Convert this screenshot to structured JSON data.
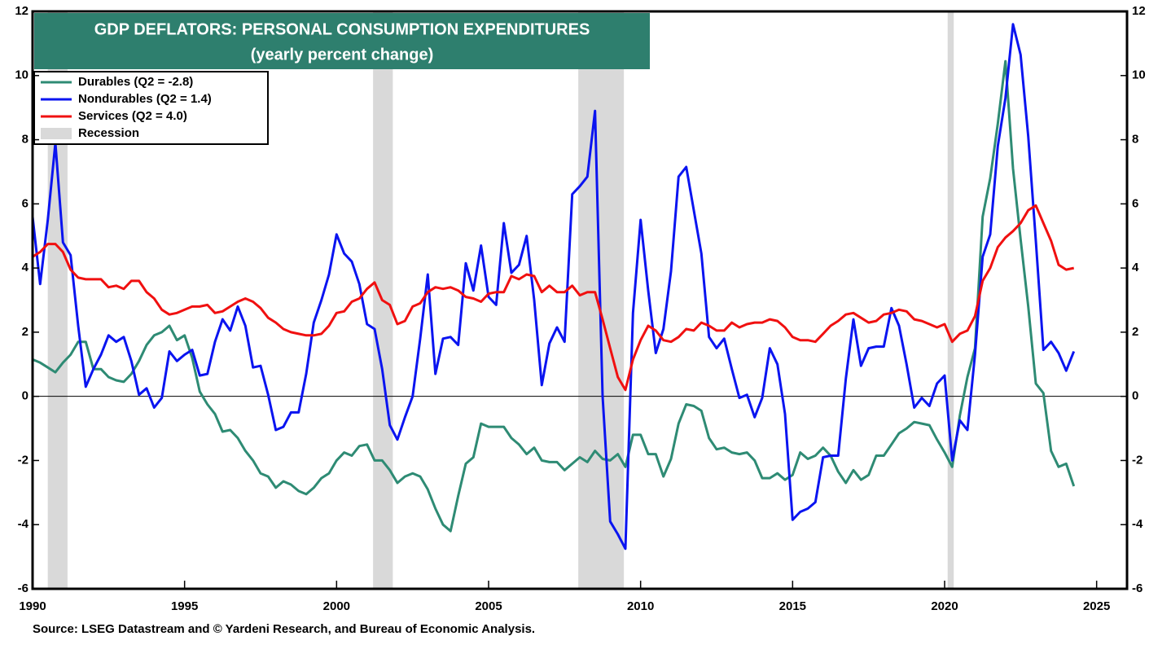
{
  "chart_data": {
    "type": "line",
    "title": "GDP DEFLATORS: PERSONAL CONSUMPTION EXPENDITURES",
    "subtitle": "(yearly percent change)",
    "source": "Source: LSEG Datastream and © Yardeni Research, and Bureau of Economic Analysis.",
    "x": [
      1990,
      1990.25,
      1990.5,
      1990.75,
      1991,
      1991.25,
      1991.5,
      1991.75,
      1992,
      1992.25,
      1992.5,
      1992.75,
      1993,
      1993.25,
      1993.5,
      1993.75,
      1994,
      1994.25,
      1994.5,
      1994.75,
      1995,
      1995.25,
      1995.5,
      1995.75,
      1996,
      1996.25,
      1996.5,
      1996.75,
      1997,
      1997.25,
      1997.5,
      1997.75,
      1998,
      1998.25,
      1998.5,
      1998.75,
      1999,
      1999.25,
      1999.5,
      1999.75,
      2000,
      2000.25,
      2000.5,
      2000.75,
      2001,
      2001.25,
      2001.5,
      2001.75,
      2002,
      2002.25,
      2002.5,
      2002.75,
      2003,
      2003.25,
      2003.5,
      2003.75,
      2004,
      2004.25,
      2004.5,
      2004.75,
      2005,
      2005.25,
      2005.5,
      2005.75,
      2006,
      2006.25,
      2006.5,
      2006.75,
      2007,
      2007.25,
      2007.5,
      2007.75,
      2008,
      2008.25,
      2008.5,
      2008.75,
      2009,
      2009.25,
      2009.5,
      2009.75,
      2010,
      2010.25,
      2010.5,
      2010.75,
      2011,
      2011.25,
      2011.5,
      2011.75,
      2012,
      2012.25,
      2012.5,
      2012.75,
      2013,
      2013.25,
      2013.5,
      2013.75,
      2014,
      2014.25,
      2014.5,
      2014.75,
      2015,
      2015.25,
      2015.5,
      2015.75,
      2016,
      2016.25,
      2016.5,
      2016.75,
      2017,
      2017.25,
      2017.5,
      2017.75,
      2018,
      2018.25,
      2018.5,
      2018.75,
      2019,
      2019.25,
      2019.5,
      2019.75,
      2020,
      2020.25,
      2020.5,
      2020.75,
      2021,
      2021.25,
      2021.5,
      2021.75,
      2022,
      2022.25,
      2022.5,
      2022.75,
      2023,
      2023.25,
      2023.5,
      2023.75,
      2024,
      2024.25
    ],
    "series": [
      {
        "name": "Durables  (Q2 = -2.8)",
        "color": "#2e8b74",
        "values": [
          1.15,
          1.05,
          0.9,
          0.75,
          1.05,
          1.3,
          1.7,
          1.7,
          0.85,
          0.85,
          0.6,
          0.5,
          0.45,
          0.7,
          1.1,
          1.6,
          1.9,
          2.0,
          2.2,
          1.75,
          1.9,
          1.2,
          0.15,
          -0.25,
          -0.55,
          -1.1,
          -1.05,
          -1.3,
          -1.7,
          -2.0,
          -2.4,
          -2.5,
          -2.85,
          -2.65,
          -2.75,
          -2.95,
          -3.05,
          -2.85,
          -2.55,
          -2.4,
          -2.0,
          -1.75,
          -1.85,
          -1.55,
          -1.5,
          -2.0,
          -2.0,
          -2.3,
          -2.7,
          -2.5,
          -2.4,
          -2.5,
          -2.9,
          -3.5,
          -4.0,
          -4.2,
          -3.1,
          -2.1,
          -1.9,
          -0.85,
          -0.95,
          -0.95,
          -0.95,
          -1.3,
          -1.5,
          -1.8,
          -1.6,
          -2.0,
          -2.05,
          -2.05,
          -2.3,
          -2.1,
          -1.9,
          -2.05,
          -1.7,
          -1.95,
          -2.0,
          -1.8,
          -2.2,
          -1.2,
          -1.2,
          -1.8,
          -1.8,
          -2.5,
          -1.95,
          -0.85,
          -0.25,
          -0.3,
          -0.45,
          -1.3,
          -1.65,
          -1.6,
          -1.75,
          -1.8,
          -1.75,
          -2.0,
          -2.55,
          -2.55,
          -2.4,
          -2.6,
          -2.45,
          -1.75,
          -1.95,
          -1.85,
          -1.6,
          -1.85,
          -2.35,
          -2.7,
          -2.3,
          -2.6,
          -2.45,
          -1.85,
          -1.85,
          -1.5,
          -1.15,
          -1.0,
          -0.8,
          -0.85,
          -0.9,
          -1.35,
          -1.75,
          -2.2,
          -0.6,
          0.6,
          1.5,
          5.6,
          6.8,
          8.5,
          10.45,
          7.1,
          4.9,
          2.8,
          0.4,
          0.1,
          -1.7,
          -2.2,
          -2.1,
          -2.8
        ]
      },
      {
        "name": "Nondurables  (Q2 = 1.4)",
        "color": "#0a14f0",
        "values": [
          5.6,
          3.5,
          5.5,
          7.9,
          4.8,
          4.4,
          2.2,
          0.3,
          0.85,
          1.3,
          1.9,
          1.7,
          1.85,
          1.1,
          0.05,
          0.25,
          -0.35,
          -0.05,
          1.4,
          1.1,
          1.3,
          1.45,
          0.65,
          0.7,
          1.7,
          2.4,
          2.05,
          2.8,
          2.2,
          0.9,
          0.95,
          0.05,
          -1.05,
          -0.95,
          -0.5,
          -0.5,
          0.7,
          2.3,
          3.0,
          3.8,
          5.05,
          4.45,
          4.2,
          3.5,
          2.25,
          2.1,
          0.85,
          -0.9,
          -1.35,
          -0.65,
          0.0,
          1.8,
          3.8,
          0.7,
          1.8,
          1.85,
          1.6,
          4.15,
          3.3,
          4.7,
          3.1,
          2.85,
          5.4,
          3.85,
          4.1,
          5.0,
          3.0,
          0.35,
          1.65,
          2.15,
          1.7,
          6.3,
          6.55,
          6.85,
          8.9,
          0.0,
          -3.9,
          -4.3,
          -4.75,
          2.6,
          5.5,
          3.3,
          1.35,
          2.1,
          3.9,
          6.85,
          7.15,
          5.8,
          4.45,
          1.85,
          1.5,
          1.8,
          0.85,
          -0.05,
          0.05,
          -0.65,
          -0.05,
          1.5,
          1.0,
          -0.55,
          -3.85,
          -3.6,
          -3.5,
          -3.3,
          -1.9,
          -1.85,
          -1.85,
          0.55,
          2.4,
          0.95,
          1.5,
          1.55,
          1.55,
          2.75,
          2.2,
          1.0,
          -0.35,
          -0.05,
          -0.3,
          0.4,
          0.65,
          -2.0,
          -0.75,
          -1.05,
          1.3,
          4.35,
          5.05,
          7.8,
          9.3,
          11.6,
          10.65,
          8.1,
          4.85,
          1.45,
          1.7,
          1.35,
          0.8,
          1.4
        ]
      },
      {
        "name": "Services (Q2 = 4.0)",
        "color": "#f01010",
        "values": [
          4.35,
          4.5,
          4.75,
          4.75,
          4.5,
          3.95,
          3.7,
          3.65,
          3.65,
          3.65,
          3.4,
          3.45,
          3.35,
          3.6,
          3.6,
          3.25,
          3.05,
          2.7,
          2.55,
          2.6,
          2.7,
          2.8,
          2.8,
          2.85,
          2.6,
          2.65,
          2.8,
          2.95,
          3.05,
          2.95,
          2.75,
          2.45,
          2.3,
          2.1,
          2.0,
          1.95,
          1.9,
          1.9,
          1.95,
          2.2,
          2.6,
          2.65,
          2.95,
          3.05,
          3.35,
          3.55,
          3.0,
          2.85,
          2.25,
          2.35,
          2.8,
          2.9,
          3.25,
          3.4,
          3.35,
          3.4,
          3.3,
          3.1,
          3.05,
          2.95,
          3.2,
          3.25,
          3.25,
          3.75,
          3.65,
          3.8,
          3.75,
          3.25,
          3.45,
          3.25,
          3.25,
          3.45,
          3.15,
          3.25,
          3.25,
          2.4,
          1.5,
          0.6,
          0.2,
          1.15,
          1.75,
          2.2,
          2.05,
          1.75,
          1.7,
          1.85,
          2.1,
          2.05,
          2.3,
          2.2,
          2.05,
          2.05,
          2.3,
          2.15,
          2.25,
          2.3,
          2.3,
          2.4,
          2.35,
          2.15,
          1.85,
          1.75,
          1.75,
          1.7,
          1.95,
          2.2,
          2.35,
          2.55,
          2.6,
          2.45,
          2.3,
          2.35,
          2.55,
          2.6,
          2.7,
          2.65,
          2.4,
          2.35,
          2.25,
          2.15,
          2.25,
          1.7,
          1.95,
          2.05,
          2.5,
          3.6,
          4.0,
          4.65,
          4.95,
          5.15,
          5.4,
          5.8,
          5.95,
          5.4,
          4.85,
          4.1,
          3.95,
          4.0
        ]
      }
    ],
    "recession": {
      "name": "Recession",
      "color": "#d9d9d9",
      "spans": [
        [
          1990.5,
          1991.15
        ],
        [
          2001.2,
          2001.85
        ],
        [
          2007.95,
          2009.45
        ],
        [
          2020.1,
          2020.3
        ]
      ]
    },
    "xlim": [
      1990,
      2026
    ],
    "xticks": [
      1990,
      1995,
      2000,
      2005,
      2010,
      2015,
      2020,
      2025
    ],
    "ylim": [
      -6,
      12
    ],
    "yticks": [
      -6,
      -4,
      -2,
      0,
      2,
      4,
      6,
      8,
      10,
      12
    ],
    "y2lim": [
      -6,
      12
    ],
    "y2ticks": [
      -6,
      -4,
      -2,
      0,
      2,
      4,
      6,
      8,
      10,
      12
    ],
    "legend": "upper left"
  }
}
